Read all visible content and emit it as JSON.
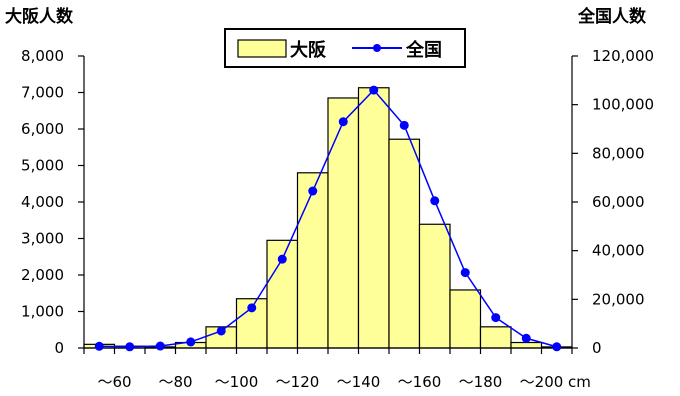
{
  "chart_data": {
    "type": "bar",
    "y_left_label": "大阪人数",
    "y_right_label": "全国人数",
    "x_unit": "cm",
    "x_tick_labels": [
      "～60",
      "～80",
      "～100",
      "～120",
      "～140",
      "～160",
      "～180",
      "～200"
    ],
    "y_left_ticks": [
      "0",
      "1,000",
      "2,000",
      "3,000",
      "4,000",
      "5,000",
      "6,000",
      "7,000",
      "8,000"
    ],
    "y_right_ticks": [
      "0",
      "20,000",
      "40,000",
      "60,000",
      "80,000",
      "100,000",
      "120,000"
    ],
    "y_left_lim": [
      0,
      8000
    ],
    "y_right_lim": [
      0,
      120000
    ],
    "legend": {
      "placement": "top-center",
      "entries": [
        "大阪",
        "全国"
      ]
    },
    "series": [
      {
        "name": "大阪",
        "type": "bar",
        "axis": "left",
        "color": "#ffff99",
        "values": [
          100,
          50,
          30,
          150,
          580,
          1350,
          2950,
          4800,
          6850,
          7130,
          5720,
          3390,
          1590,
          580,
          150,
          30
        ]
      },
      {
        "name": "全国",
        "type": "line",
        "axis": "right",
        "color": "#0000ff",
        "values": [
          700,
          500,
          800,
          2500,
          7000,
          16500,
          36500,
          64500,
          93000,
          106000,
          91500,
          60500,
          31000,
          12500,
          4000,
          500
        ]
      }
    ]
  }
}
